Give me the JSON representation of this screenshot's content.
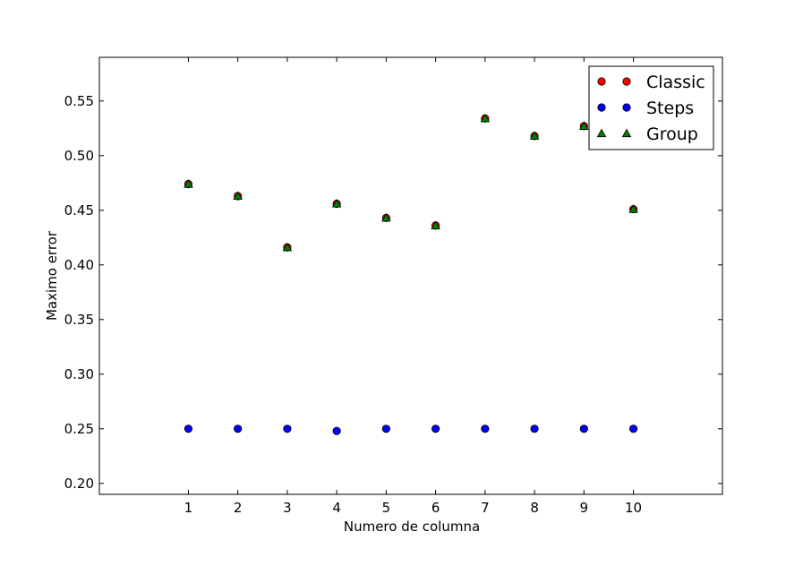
{
  "chart_data": {
    "type": "scatter",
    "title": "",
    "xlabel": "Numero de columna",
    "ylabel": "Maximo error",
    "xlim": [
      -0.8,
      11.8
    ],
    "ylim": [
      0.19,
      0.59
    ],
    "xticks": [
      1,
      2,
      3,
      4,
      5,
      6,
      7,
      8,
      9,
      10
    ],
    "xtick_labels": [
      "1",
      "2",
      "3",
      "4",
      "5",
      "6",
      "7",
      "8",
      "9",
      "10"
    ],
    "yticks": [
      0.2,
      0.25,
      0.3,
      0.35,
      0.4,
      0.45,
      0.5,
      0.55
    ],
    "ytick_labels": [
      "0.20",
      "0.25",
      "0.30",
      "0.35",
      "0.40",
      "0.45",
      "0.50",
      "0.55"
    ],
    "grid": false,
    "legend_position": "top-right",
    "series": [
      {
        "name": "Classic",
        "marker": "circle",
        "color": "#ff0000",
        "x": [
          1,
          2,
          3,
          4,
          5,
          6,
          7,
          8,
          9,
          10
        ],
        "y": [
          0.474,
          0.463,
          0.416,
          0.456,
          0.443,
          0.436,
          0.534,
          0.518,
          0.527,
          0.451
        ]
      },
      {
        "name": "Steps",
        "marker": "circle",
        "color": "#0000ff",
        "x": [
          1,
          2,
          3,
          4,
          5,
          6,
          7,
          8,
          9,
          10
        ],
        "y": [
          0.25,
          0.25,
          0.25,
          0.248,
          0.25,
          0.25,
          0.25,
          0.25,
          0.25,
          0.25
        ]
      },
      {
        "name": "Group",
        "marker": "triangle",
        "color": "#008000",
        "x": [
          1,
          2,
          3,
          4,
          5,
          6,
          7,
          8,
          9,
          10
        ],
        "y": [
          0.474,
          0.463,
          0.416,
          0.456,
          0.443,
          0.436,
          0.534,
          0.518,
          0.527,
          0.451
        ]
      }
    ]
  }
}
